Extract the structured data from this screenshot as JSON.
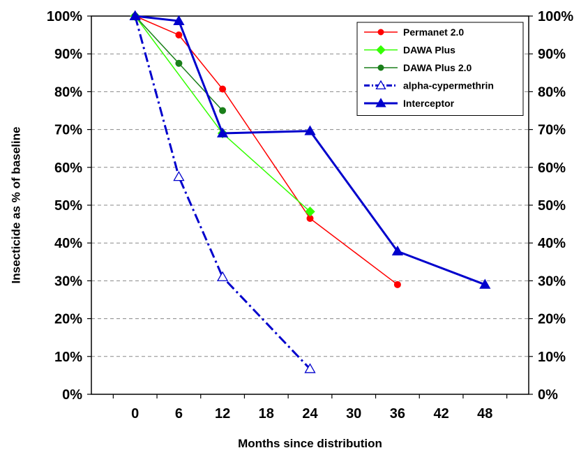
{
  "chart_data": {
    "type": "line",
    "xlabel": "Months since distribution",
    "ylabel": "Insecticide as % of baseline",
    "y2label": "",
    "xlim": [
      -6,
      54
    ],
    "ylim": [
      0,
      100
    ],
    "x_ticks": [
      "0",
      "6",
      "12",
      "18",
      "24",
      "30",
      "36",
      "42",
      "48"
    ],
    "x_tick_values": [
      0,
      6,
      12,
      18,
      24,
      30,
      36,
      42,
      48
    ],
    "y_ticks": [
      "0%",
      "10%",
      "20%",
      "30%",
      "40%",
      "50%",
      "60%",
      "70%",
      "80%",
      "90%",
      "100%"
    ],
    "y_tick_values": [
      0,
      10,
      20,
      30,
      40,
      50,
      60,
      70,
      80,
      90,
      100
    ],
    "grid": "horizontal dashed",
    "legend_position": "top-right",
    "series": [
      {
        "name": "Permanet 2.0",
        "color": "#ff0000",
        "marker": "circle",
        "line_style": "solid",
        "x": [
          0,
          6,
          12,
          24,
          36
        ],
        "y": [
          100,
          95,
          80.7,
          46.5,
          29
        ]
      },
      {
        "name": "DAWA Plus",
        "color": "#33ff00",
        "marker": "diamond",
        "line_style": "solid",
        "x": [
          0,
          12,
          24
        ],
        "y": [
          100,
          69,
          48.3
        ]
      },
      {
        "name": "DAWA Plus 2.0",
        "color": "#1a7f1a",
        "marker": "circle",
        "line_style": "solid",
        "x": [
          0,
          6,
          12
        ],
        "y": [
          100,
          87.5,
          75
        ]
      },
      {
        "name": "alpha-cypermethrin",
        "color": "#0000cc",
        "marker": "open-triangle",
        "line_style": "dash-dot",
        "x": [
          0,
          6,
          12,
          24
        ],
        "y": [
          100,
          57.5,
          31,
          6.7
        ]
      },
      {
        "name": "Interceptor",
        "color": "#0000cc",
        "marker": "triangle",
        "line_style": "solid",
        "x": [
          0,
          6,
          12,
          24,
          36,
          48
        ],
        "y": [
          100,
          98.7,
          69,
          69.6,
          37.8,
          29
        ]
      }
    ]
  }
}
